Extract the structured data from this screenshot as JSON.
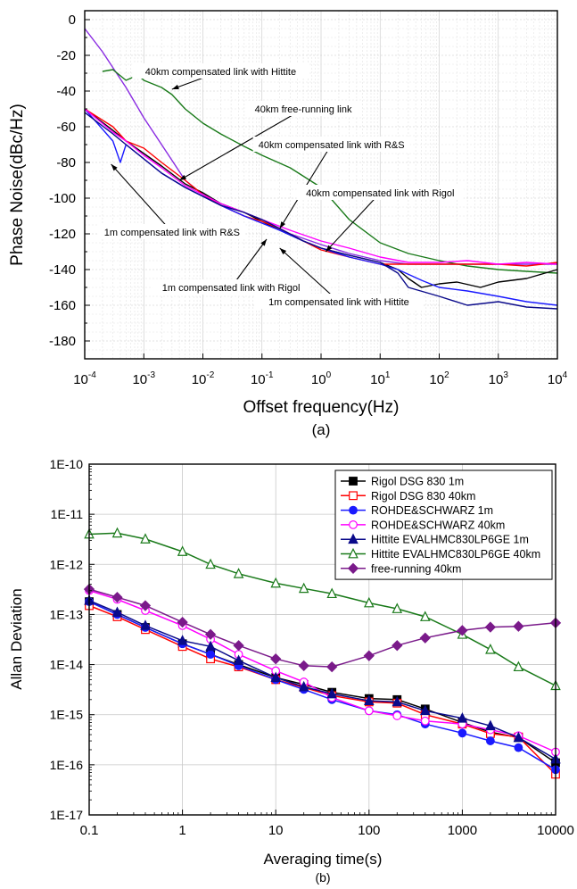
{
  "colors": {
    "black": "#000000",
    "red": "#ff0000",
    "blue": "#1a1aff",
    "navy": "#0a0a8a",
    "magenta": "#ff00ff",
    "purple": "#8a2be2",
    "green": "#1a7a1a",
    "darkpurple": "#7a1a8a"
  },
  "chart_data": [
    {
      "type": "line",
      "panel_label": "(a)",
      "xlabel": "Offset frequency(Hz)",
      "ylabel": "Phase Noise(dBc/Hz)",
      "xscale": "log",
      "xlim": [
        0.0001,
        10000
      ],
      "ylim": [
        -190,
        5
      ],
      "x_ticks": [
        {
          "base": "10",
          "exp": "-4",
          "value": 0.0001
        },
        {
          "base": "10",
          "exp": "-3",
          "value": 0.001
        },
        {
          "base": "10",
          "exp": "-2",
          "value": 0.01
        },
        {
          "base": "10",
          "exp": "-1",
          "value": 0.1
        },
        {
          "base": "10",
          "exp": "0",
          "value": 1
        },
        {
          "base": "10",
          "exp": "1",
          "value": 10
        },
        {
          "base": "10",
          "exp": "2",
          "value": 100
        },
        {
          "base": "10",
          "exp": "3",
          "value": 1000
        },
        {
          "base": "10",
          "exp": "4",
          "value": 10000
        }
      ],
      "y_ticks": [
        "0",
        "-20",
        "-40",
        "-60",
        "-80",
        "-100",
        "-120",
        "-140",
        "-160",
        "-180"
      ],
      "annotations": [
        {
          "text": "40km compensated link with Hittite",
          "x": 0.003,
          "y": -39,
          "tx": 0.02,
          "ty": -29
        },
        {
          "text": "40km free-running link",
          "x": 0.004,
          "y": -90,
          "tx": 0.5,
          "ty": -50
        },
        {
          "text": "40km compensated link with R&S",
          "x": 0.2,
          "y": -117,
          "tx": 1.5,
          "ty": -70
        },
        {
          "text": "40km compensated link with Rigol",
          "x": 1.2,
          "y": -130,
          "tx": 10,
          "ty": -97
        },
        {
          "text": "1m compensated link with R&S",
          "x": 0.00028,
          "y": -81,
          "tx": 0.003,
          "ty": -119
        },
        {
          "text": "1m compensated link with Rigol",
          "x": 0.12,
          "y": -123,
          "tx": 0.03,
          "ty": -150
        },
        {
          "text": "1m compensated link with Hittite",
          "x": 0.2,
          "y": -128,
          "tx": 2,
          "ty": -158
        }
      ],
      "series": [
        {
          "color": "#8a2be2",
          "x": [
            0.0001,
            0.0002,
            0.0005,
            0.001,
            0.002,
            0.005,
            0.01,
            0.02,
            0.05,
            0.1,
            0.3,
            1,
            3,
            10,
            30,
            100,
            300,
            1000,
            3000,
            10000
          ],
          "y": [
            -5,
            -18,
            -38,
            -55,
            -70,
            -90,
            -98,
            -104,
            -110,
            -114,
            -120,
            -126,
            -131,
            -135,
            -137,
            -137,
            -137,
            -137,
            -137,
            -137
          ]
        },
        {
          "color": "#1a7a1a",
          "x": [
            0.0002,
            0.0003,
            0.0005,
            0.0008,
            0.001,
            0.002,
            0.003,
            0.005,
            0.01,
            0.02,
            0.05,
            0.1,
            0.3,
            1,
            3,
            10,
            30,
            100,
            300,
            1000,
            3000,
            10000
          ],
          "y": [
            -29,
            -28,
            -34,
            -31,
            -34,
            -38,
            -42,
            -50,
            -58,
            -64,
            -71,
            -76,
            -83,
            -94,
            -112,
            -125,
            -131,
            -135,
            -138,
            -140,
            -141,
            -142
          ]
        },
        {
          "color": "#000000",
          "x": [
            0.0001,
            0.0003,
            0.0005,
            0.001,
            0.002,
            0.005,
            0.01,
            0.02,
            0.05,
            0.1,
            0.2,
            0.5,
            1,
            3,
            10,
            20,
            30,
            50,
            100,
            200,
            500,
            1000,
            3000,
            10000
          ],
          "y": [
            -50,
            -62,
            -68,
            -75,
            -82,
            -92,
            -97,
            -103,
            -108,
            -113,
            -118,
            -124,
            -128,
            -132,
            -136,
            -140,
            -145,
            -150,
            -148,
            -147,
            -150,
            -147,
            -145,
            -140
          ]
        },
        {
          "color": "#ff0000",
          "x": [
            0.0001,
            0.0003,
            0.0005,
            0.001,
            0.002,
            0.005,
            0.01,
            0.02,
            0.05,
            0.1,
            0.2,
            0.5,
            1,
            3,
            10,
            30,
            100,
            300,
            1000,
            3000,
            10000
          ],
          "y": [
            -50,
            -60,
            -68,
            -72,
            -80,
            -90,
            -98,
            -104,
            -110,
            -113,
            -117,
            -124,
            -129,
            -133,
            -137,
            -137,
            -137,
            -137,
            -137,
            -138,
            -136
          ]
        },
        {
          "color": "#1a1aff",
          "x": [
            0.0001,
            0.0003,
            0.0004,
            0.0005,
            0.001,
            0.002,
            0.005,
            0.01,
            0.02,
            0.05,
            0.1,
            0.2,
            0.5,
            1,
            3,
            10,
            20,
            50,
            100,
            300,
            1000,
            3000,
            10000
          ],
          "y": [
            -50,
            -68,
            -80,
            -70,
            -78,
            -86,
            -94,
            -99,
            -104,
            -110,
            -114,
            -118,
            -124,
            -128,
            -133,
            -137,
            -140,
            -146,
            -150,
            -152,
            -155,
            -158,
            -160
          ]
        },
        {
          "color": "#ff00ff",
          "x": [
            0.0001,
            0.0003,
            0.0005,
            0.001,
            0.002,
            0.005,
            0.01,
            0.02,
            0.05,
            0.1,
            0.3,
            1,
            3,
            10,
            30,
            100,
            300,
            1000,
            3000,
            10000
          ],
          "y": [
            -50,
            -63,
            -68,
            -76,
            -83,
            -93,
            -98,
            -103,
            -108,
            -112,
            -118,
            -124,
            -128,
            -133,
            -136,
            -136,
            -135,
            -137,
            -136,
            -137
          ]
        },
        {
          "color": "#0a0a8a",
          "x": [
            0.0001,
            0.0003,
            0.0005,
            0.001,
            0.002,
            0.005,
            0.01,
            0.02,
            0.05,
            0.1,
            0.2,
            0.5,
            1,
            3,
            10,
            20,
            30,
            100,
            300,
            1000,
            3000,
            10000
          ],
          "y": [
            -52,
            -64,
            -70,
            -78,
            -86,
            -94,
            -99,
            -104,
            -108,
            -112,
            -117,
            -124,
            -128,
            -132,
            -136,
            -142,
            -150,
            -155,
            -160,
            -158,
            -161,
            -162
          ]
        }
      ]
    },
    {
      "type": "line",
      "panel_label": "(b)",
      "xlabel": "Averaging time(s)",
      "ylabel": "Allan Deviation",
      "xscale": "log",
      "yscale": "log",
      "xlim": [
        0.1,
        10000
      ],
      "ylim": [
        1e-17,
        1e-10
      ],
      "x_ticks": [
        {
          "label": "0.1",
          "value": 0.1
        },
        {
          "label": "1",
          "value": 1
        },
        {
          "label": "10",
          "value": 10
        },
        {
          "label": "100",
          "value": 100
        },
        {
          "label": "1000",
          "value": 1000
        },
        {
          "label": "10000",
          "value": 10000
        }
      ],
      "y_ticks": [
        {
          "label": "1E-10",
          "value": 1e-10
        },
        {
          "label": "1E-11",
          "value": 1e-11
        },
        {
          "label": "1E-12",
          "value": 1e-12
        },
        {
          "label": "1E-13",
          "value": 1e-13
        },
        {
          "label": "1E-14",
          "value": 1e-14
        },
        {
          "label": "1E-15",
          "value": 1e-15
        },
        {
          "label": "1E-16",
          "value": 1e-16
        },
        {
          "label": "1E-17",
          "value": 1e-17
        }
      ],
      "legend": "top-right",
      "x": [
        0.1,
        0.2,
        0.4,
        1,
        2,
        4,
        10,
        20,
        40,
        100,
        200,
        400,
        1000,
        2000,
        4000,
        10000
      ],
      "series": [
        {
          "name": "Rigol DSG 830 1m",
          "color": "#000000",
          "marker": "square-filled",
          "y": [
            1.8e-13,
            1e-13,
            5.5e-14,
            2.6e-14,
            1.6e-14,
            1e-14,
            5.5e-15,
            4e-15,
            2.8e-15,
            2.1e-15,
            2e-15,
            1.3e-15,
            7e-16,
            4.5e-16,
            3.5e-16,
            1.1e-16
          ]
        },
        {
          "name": "Rigol DSG 830 40km",
          "color": "#ff0000",
          "marker": "square-open",
          "y": [
            1.5e-13,
            9e-14,
            5e-14,
            2.3e-14,
            1.3e-14,
            9e-15,
            5e-15,
            3.5e-15,
            2.4e-15,
            1.8e-15,
            1.7e-15,
            1e-15,
            6.5e-16,
            4.2e-16,
            3.6e-16,
            6.5e-17
          ]
        },
        {
          "name": "ROHDE&SCHWARZ 1m",
          "color": "#1a1aff",
          "marker": "circle-filled",
          "y": [
            1.8e-13,
            1e-13,
            5.5e-14,
            2.6e-14,
            1.6e-14,
            9.5e-15,
            5e-15,
            3.2e-15,
            2e-15,
            1.2e-15,
            1e-15,
            6.5e-16,
            4.3e-16,
            3e-16,
            2.2e-16,
            8e-17
          ]
        },
        {
          "name": "ROHDE&SCHWARZ 40km",
          "color": "#ff00ff",
          "marker": "circle-open",
          "y": [
            3e-13,
            2e-13,
            1.2e-13,
            6e-14,
            3.2e-14,
            1.6e-14,
            7.5e-15,
            4.5e-15,
            2.2e-15,
            1.2e-15,
            9.5e-16,
            7.5e-16,
            6.5e-16,
            5e-16,
            3.8e-16,
            1.8e-16
          ]
        },
        {
          "name": "Hittite EVALHMC830LP6GE 1m",
          "color": "#0a0a8a",
          "marker": "triangle-filled",
          "y": [
            1.9e-13,
            1.1e-13,
            6e-14,
            3e-14,
            2.3e-14,
            1.2e-14,
            5.5e-15,
            3.6e-15,
            2.6e-15,
            1.9e-15,
            1.8e-15,
            1.2e-15,
            8.5e-16,
            6e-16,
            3.5e-16,
            1.3e-16
          ]
        },
        {
          "name": "Hittite EVALHMC830LP6GE 40km",
          "color": "#1a7a1a",
          "marker": "triangle-open",
          "y": [
            4e-12,
            4.2e-12,
            3.2e-12,
            1.8e-12,
            1e-12,
            6.5e-13,
            4.2e-13,
            3.3e-13,
            2.6e-13,
            1.7e-13,
            1.3e-13,
            9e-14,
            4e-14,
            2e-14,
            9e-15,
            3.8e-15
          ]
        },
        {
          "name": "free-running 40km",
          "color": "#7a1a8a",
          "marker": "diamond-filled",
          "y": [
            3.2e-13,
            2.2e-13,
            1.5e-13,
            7e-14,
            4e-14,
            2.4e-14,
            1.3e-14,
            9.5e-15,
            9e-15,
            1.5e-14,
            2.4e-14,
            3.4e-14,
            4.8e-14,
            5.6e-14,
            5.8e-14,
            6.8e-14
          ]
        }
      ]
    }
  ]
}
